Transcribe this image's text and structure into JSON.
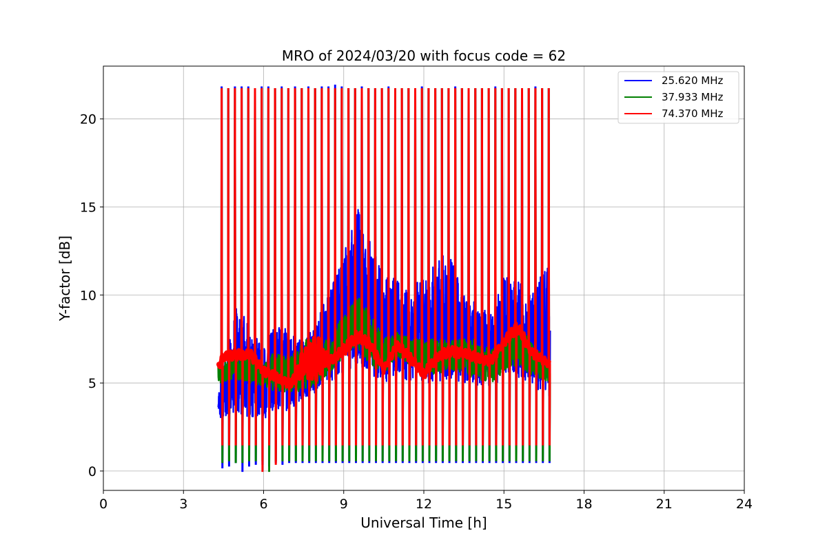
{
  "chart_data": {
    "type": "line",
    "title": "MRO of 2024/03/20 with focus code = 62",
    "xlabel": "Universal Time [h]",
    "ylabel": "Y-factor [dB]",
    "xlim": [
      0,
      24
    ],
    "ylim": [
      -1.1,
      23
    ],
    "xticks": [
      0,
      3,
      6,
      9,
      12,
      15,
      18,
      21,
      24
    ],
    "yticks": [
      0,
      5,
      10,
      15,
      20
    ],
    "grid": true,
    "legend_position": "top-right",
    "x_range_observed": [
      4.3,
      16.7
    ],
    "calibration_pulse_period_h": 0.25,
    "series": [
      {
        "name": "25.620 MHz",
        "color": "#0000ff",
        "envelope": {
          "x": [
            4.3,
            5.0,
            5.5,
            6.0,
            6.5,
            7.0,
            7.5,
            8.0,
            8.5,
            9.0,
            9.5,
            10.0,
            10.5,
            11.0,
            11.5,
            12.0,
            12.5,
            13.0,
            13.5,
            14.0,
            14.5,
            15.0,
            15.5,
            16.0,
            16.7
          ],
          "low": [
            3.0,
            3.3,
            3.0,
            3.0,
            3.2,
            3.5,
            4.0,
            4.5,
            5.0,
            5.5,
            6.0,
            5.5,
            5.0,
            5.5,
            5.0,
            5.0,
            5.0,
            5.2,
            5.0,
            4.8,
            4.8,
            5.0,
            5.2,
            5.0,
            4.0
          ],
          "high": [
            4.5,
            9.5,
            8.5,
            7.0,
            8.5,
            8.0,
            7.5,
            8.5,
            10.5,
            12.5,
            15.0,
            13.0,
            11.0,
            11.0,
            10.5,
            11.0,
            12.0,
            12.5,
            10.0,
            9.5,
            9.0,
            11.0,
            11.0,
            10.0,
            12.0
          ]
        },
        "peaks": [
          21.8,
          21.7,
          21.8,
          21.8,
          21.8,
          21.7,
          21.8,
          21.8,
          21.7,
          21.8,
          21.7,
          21.8,
          21.7,
          21.8,
          21.7,
          21.8,
          21.8,
          21.9,
          21.8,
          21.7,
          21.7,
          21.8,
          21.7,
          21.7,
          21.7,
          21.8,
          21.7,
          21.7,
          21.7,
          21.7,
          21.8,
          21.7,
          21.7,
          21.7,
          21.7,
          21.8,
          21.7,
          21.7,
          21.7,
          21.7,
          21.7,
          21.8,
          21.7,
          21.7,
          21.7,
          21.7,
          21.7,
          21.8,
          21.7,
          21.7
        ],
        "dips": [
          0.2,
          0.3,
          0.5,
          0.0,
          0.3,
          0.4,
          0.4,
          0.3,
          0.5,
          0.4,
          0.5,
          0.5,
          0.5,
          0.5,
          0.5,
          0.5,
          0.5,
          0.5,
          0.5,
          0.5,
          0.5,
          0.5,
          0.5,
          0.5,
          0.5,
          0.5,
          0.5,
          0.5,
          0.5,
          0.5,
          0.5,
          0.5,
          0.5,
          0.5,
          0.5,
          0.5,
          0.5,
          0.5,
          0.5,
          0.5,
          0.5,
          0.5,
          0.5,
          0.5,
          0.5,
          0.5,
          0.5,
          0.5,
          0.5,
          0.5
        ]
      },
      {
        "name": "37.933 MHz",
        "color": "#008000",
        "envelope": {
          "x": [
            4.3,
            5.0,
            5.5,
            6.0,
            6.5,
            7.0,
            7.5,
            8.0,
            8.5,
            9.0,
            9.5,
            10.0,
            10.5,
            11.0,
            11.5,
            12.0,
            12.5,
            13.0,
            13.5,
            14.0,
            14.5,
            15.0,
            15.5,
            16.0,
            16.7
          ],
          "low": [
            5.0,
            5.2,
            5.0,
            4.8,
            4.5,
            4.5,
            4.5,
            4.8,
            5.5,
            6.5,
            7.0,
            6.0,
            5.5,
            6.5,
            6.0,
            5.5,
            5.5,
            5.8,
            5.5,
            5.2,
            5.0,
            5.5,
            6.0,
            5.5,
            5.0
          ],
          "high": [
            6.0,
            6.5,
            6.5,
            6.0,
            7.0,
            6.5,
            7.5,
            7.5,
            7.5,
            9.0,
            10.0,
            9.0,
            7.5,
            8.0,
            7.5,
            7.5,
            7.5,
            7.5,
            7.5,
            7.5,
            7.0,
            7.5,
            8.5,
            7.5,
            6.0
          ]
        },
        "peaks": [
          21.7,
          21.7,
          21.7,
          21.7,
          21.7,
          21.7,
          21.7,
          21.7,
          21.7,
          21.7,
          21.7,
          21.7,
          21.7,
          21.7,
          21.7,
          21.7,
          21.7,
          21.7,
          21.7,
          21.7,
          21.7,
          21.7,
          21.7,
          21.7,
          21.7,
          21.7,
          21.7,
          21.7,
          21.7,
          21.7,
          21.7,
          21.7,
          21.7,
          21.7,
          21.7,
          21.7,
          21.7,
          21.7,
          21.7,
          21.7,
          21.7,
          21.7,
          21.7,
          21.7,
          21.7,
          21.7,
          21.7,
          21.7,
          21.7,
          21.7
        ],
        "dips": [
          0.5,
          0.6,
          0.5,
          0.5,
          0.6,
          0.6,
          0.6,
          0.0,
          0.6,
          0.6,
          0.6,
          0.6,
          0.6,
          0.6,
          0.6,
          0.6,
          0.6,
          0.6,
          0.6,
          0.6,
          0.6,
          0.6,
          0.6,
          0.6,
          0.6,
          0.6,
          0.6,
          0.6,
          0.6,
          0.6,
          0.6,
          0.6,
          0.6,
          0.6,
          0.6,
          0.6,
          0.6,
          0.6,
          0.6,
          0.6,
          0.6,
          0.6,
          0.6,
          0.6,
          0.6,
          0.6,
          0.6,
          0.6,
          0.6,
          0.6
        ]
      },
      {
        "name": "74.370 MHz",
        "color": "#ff0000",
        "envelope": {
          "x": [
            4.3,
            4.5,
            5.0,
            5.5,
            6.0,
            6.5,
            7.0,
            7.5,
            8.0,
            8.5,
            9.0,
            9.5,
            10.0,
            10.5,
            11.0,
            11.5,
            12.0,
            12.5,
            13.0,
            13.5,
            14.0,
            14.5,
            15.0,
            15.5,
            16.0,
            16.7
          ],
          "low": [
            5.7,
            6.2,
            6.3,
            6.3,
            5.4,
            5.0,
            4.6,
            5.3,
            5.0,
            6.0,
            6.5,
            7.3,
            6.9,
            5.5,
            6.9,
            6.1,
            5.2,
            6.2,
            6.5,
            6.4,
            6.1,
            6.0,
            7.0,
            7.8,
            6.5,
            5.8
          ],
          "high": [
            6.2,
            6.8,
            6.9,
            6.9,
            6.0,
            5.6,
            5.2,
            7.0,
            7.8,
            6.6,
            7.2,
            8.0,
            7.5,
            6.1,
            7.5,
            6.7,
            5.8,
            6.8,
            7.1,
            7.0,
            6.7,
            6.6,
            7.6,
            8.6,
            7.1,
            6.3
          ]
        },
        "peaks": [
          21.7,
          21.7,
          21.7,
          21.7,
          21.7,
          21.7,
          21.7,
          21.7,
          21.7,
          21.7,
          21.7,
          21.7,
          21.7,
          21.7,
          21.7,
          21.7,
          21.7,
          21.7,
          21.7,
          21.7,
          21.7,
          21.7,
          21.7,
          21.7,
          21.7,
          21.7,
          21.7,
          21.7,
          21.7,
          21.7,
          21.7,
          21.7,
          21.7,
          21.7,
          21.7,
          21.7,
          21.7,
          21.7,
          21.7,
          21.7,
          21.7,
          21.7,
          21.7,
          21.7,
          21.7,
          21.7,
          21.7,
          21.7,
          21.7,
          21.7
        ],
        "dips": [
          1.5,
          1.5,
          1.5,
          1.5,
          1.5,
          1.5,
          0.0,
          1.5,
          0.4,
          1.5,
          1.5,
          1.5,
          1.5,
          1.5,
          1.5,
          1.5,
          1.5,
          1.5,
          1.5,
          1.5,
          1.5,
          1.5,
          1.5,
          1.5,
          1.5,
          1.5,
          1.5,
          1.5,
          1.5,
          1.5,
          1.5,
          1.5,
          1.5,
          1.5,
          1.5,
          1.5,
          1.5,
          1.5,
          1.5,
          1.5,
          1.5,
          1.5,
          1.5,
          1.5,
          1.5,
          1.5,
          1.5,
          1.5,
          1.5,
          1.5
        ]
      }
    ]
  }
}
